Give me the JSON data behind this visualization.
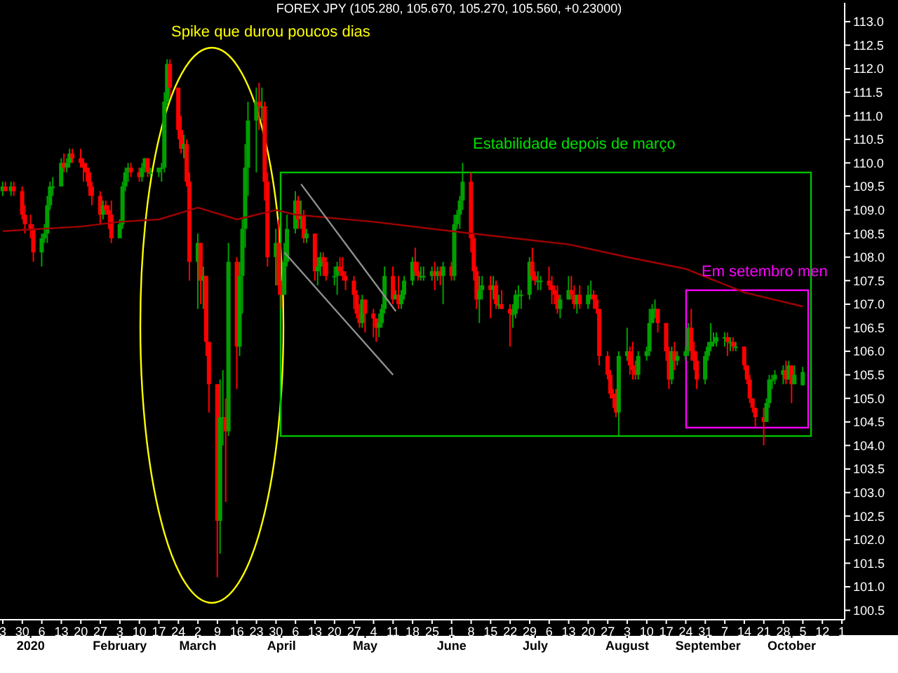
{
  "chart_data": {
    "type": "candlestick",
    "title": "FOREX JPY (105.280, 105.670, 105.270, 105.560, +0.23000)",
    "annotations": [
      "Spike que durou poucos dias",
      "Estabilidade depois de março",
      "Em setembro men"
    ],
    "x": [
      "2019-12-23",
      "2019-12-24",
      "2019-12-26",
      "2019-12-27",
      "2019-12-30",
      "2019-12-31",
      "2020-01-02",
      "2020-01-03",
      "2020-01-06",
      "2020-01-07",
      "2020-01-08",
      "2020-01-09",
      "2020-01-10",
      "2020-01-13",
      "2020-01-14",
      "2020-01-15",
      "2020-01-16",
      "2020-01-17",
      "2020-01-20",
      "2020-01-21",
      "2020-01-22",
      "2020-01-23",
      "2020-01-24",
      "2020-01-27",
      "2020-01-28",
      "2020-01-29",
      "2020-01-30",
      "2020-01-31",
      "2020-02-03",
      "2020-02-04",
      "2020-02-05",
      "2020-02-06",
      "2020-02-07",
      "2020-02-10",
      "2020-02-11",
      "2020-02-12",
      "2020-02-13",
      "2020-02-14",
      "2020-02-17",
      "2020-02-18",
      "2020-02-19",
      "2020-02-20",
      "2020-02-21",
      "2020-02-24",
      "2020-02-25",
      "2020-02-26",
      "2020-02-27",
      "2020-02-28",
      "2020-03-02",
      "2020-03-03",
      "2020-03-04",
      "2020-03-05",
      "2020-03-06",
      "2020-03-09",
      "2020-03-10",
      "2020-03-11",
      "2020-03-12",
      "2020-03-13",
      "2020-03-16",
      "2020-03-17",
      "2020-03-18",
      "2020-03-19",
      "2020-03-20",
      "2020-03-23",
      "2020-03-24",
      "2020-03-25",
      "2020-03-26",
      "2020-03-27",
      "2020-03-30",
      "2020-03-31",
      "2020-04-01",
      "2020-04-02",
      "2020-04-03",
      "2020-04-06",
      "2020-04-07",
      "2020-04-08",
      "2020-04-09",
      "2020-04-10",
      "2020-04-13",
      "2020-04-14",
      "2020-04-15",
      "2020-04-16",
      "2020-04-17",
      "2020-04-20",
      "2020-04-21",
      "2020-04-22",
      "2020-04-23",
      "2020-04-24",
      "2020-04-27",
      "2020-04-28",
      "2020-04-29",
      "2020-04-30",
      "2020-05-01",
      "2020-05-04",
      "2020-05-05",
      "2020-05-06",
      "2020-05-07",
      "2020-05-08",
      "2020-05-11",
      "2020-05-12",
      "2020-05-13",
      "2020-05-14",
      "2020-05-15",
      "2020-05-18",
      "2020-05-19",
      "2020-05-20",
      "2020-05-21",
      "2020-05-22",
      "2020-05-25",
      "2020-05-26",
      "2020-05-27",
      "2020-05-28",
      "2020-05-29",
      "2020-06-01",
      "2020-06-02",
      "2020-06-03",
      "2020-06-04",
      "2020-06-05",
      "2020-06-08",
      "2020-06-09",
      "2020-06-10",
      "2020-06-11",
      "2020-06-12",
      "2020-06-15",
      "2020-06-16",
      "2020-06-17",
      "2020-06-18",
      "2020-06-19",
      "2020-06-22",
      "2020-06-23",
      "2020-06-24",
      "2020-06-25",
      "2020-06-26",
      "2020-06-29",
      "2020-06-30",
      "2020-07-01",
      "2020-07-02",
      "2020-07-03",
      "2020-07-06",
      "2020-07-07",
      "2020-07-08",
      "2020-07-09",
      "2020-07-10",
      "2020-07-13",
      "2020-07-14",
      "2020-07-15",
      "2020-07-16",
      "2020-07-17",
      "2020-07-20",
      "2020-07-21",
      "2020-07-22",
      "2020-07-23",
      "2020-07-24",
      "2020-07-27",
      "2020-07-28",
      "2020-07-29",
      "2020-07-30",
      "2020-07-31",
      "2020-08-03",
      "2020-08-04",
      "2020-08-05",
      "2020-08-06",
      "2020-08-07",
      "2020-08-10",
      "2020-08-11",
      "2020-08-12",
      "2020-08-13",
      "2020-08-14",
      "2020-08-17",
      "2020-08-18",
      "2020-08-19",
      "2020-08-20",
      "2020-08-21",
      "2020-08-24",
      "2020-08-25",
      "2020-08-26",
      "2020-08-27",
      "2020-08-28",
      "2020-08-31",
      "2020-09-01",
      "2020-09-02",
      "2020-09-03",
      "2020-09-04",
      "2020-09-07",
      "2020-09-08",
      "2020-09-09",
      "2020-09-10",
      "2020-09-11",
      "2020-09-14",
      "2020-09-15",
      "2020-09-16",
      "2020-09-17",
      "2020-09-18",
      "2020-09-21",
      "2020-09-22",
      "2020-09-23",
      "2020-09-24",
      "2020-09-25",
      "2020-09-28",
      "2020-09-29",
      "2020-09-30",
      "2020-10-01",
      "2020-10-02",
      "2020-10-05"
    ],
    "ohlc": [
      [
        109.4,
        109.6,
        109.3,
        109.5
      ],
      [
        109.5,
        109.6,
        109.4,
        109.4
      ],
      [
        109.4,
        109.6,
        109.3,
        109.5
      ],
      [
        109.5,
        109.6,
        109.3,
        109.4
      ],
      [
        109.4,
        109.5,
        108.8,
        108.9
      ],
      [
        108.9,
        109.1,
        108.5,
        108.7
      ],
      [
        108.7,
        108.9,
        108.4,
        108.6
      ],
      [
        108.6,
        108.7,
        107.9,
        108.1
      ],
      [
        108.1,
        108.5,
        107.8,
        108.4
      ],
      [
        108.4,
        108.7,
        108.3,
        108.5
      ],
      [
        108.5,
        109.3,
        108.3,
        109.1
      ],
      [
        109.1,
        109.6,
        109.0,
        109.5
      ],
      [
        109.5,
        109.7,
        109.3,
        109.5
      ],
      [
        109.5,
        110.1,
        109.5,
        110.0
      ],
      [
        110.0,
        110.2,
        109.8,
        109.9
      ],
      [
        109.9,
        110.1,
        109.8,
        110.0
      ],
      [
        110.0,
        110.3,
        109.9,
        110.2
      ],
      [
        110.2,
        110.3,
        110.0,
        110.1
      ],
      [
        110.1,
        110.3,
        109.9,
        110.0
      ],
      [
        110.0,
        110.1,
        109.6,
        109.9
      ],
      [
        109.9,
        110.0,
        109.6,
        109.8
      ],
      [
        109.8,
        109.9,
        109.3,
        109.5
      ],
      [
        109.5,
        109.6,
        109.1,
        109.3
      ],
      [
        109.3,
        109.4,
        108.7,
        108.9
      ],
      [
        108.9,
        109.2,
        108.8,
        109.1
      ],
      [
        109.1,
        109.2,
        108.9,
        109.0
      ],
      [
        109.0,
        109.1,
        108.6,
        108.9
      ],
      [
        108.9,
        109.2,
        108.3,
        108.4
      ],
      [
        108.4,
        108.8,
        108.4,
        108.7
      ],
      [
        108.7,
        109.6,
        108.6,
        109.5
      ],
      [
        109.5,
        109.9,
        109.4,
        109.8
      ],
      [
        109.8,
        110.0,
        109.6,
        109.9
      ],
      [
        109.9,
        110.0,
        109.7,
        109.8
      ],
      [
        109.8,
        109.9,
        109.6,
        109.7
      ],
      [
        109.7,
        110.0,
        109.6,
        109.9
      ],
      [
        109.9,
        110.1,
        109.8,
        110.1
      ],
      [
        110.1,
        110.1,
        109.7,
        109.8
      ],
      [
        109.8,
        109.9,
        109.7,
        109.8
      ],
      [
        109.8,
        109.9,
        109.7,
        109.9
      ],
      [
        109.9,
        110.0,
        109.6,
        109.9
      ],
      [
        109.9,
        111.5,
        109.8,
        111.3
      ],
      [
        111.3,
        112.2,
        111.2,
        112.1
      ],
      [
        112.1,
        112.2,
        111.4,
        111.6
      ],
      [
        111.6,
        111.6,
        110.5,
        110.7
      ],
      [
        110.7,
        111.0,
        110.2,
        110.3
      ],
      [
        110.3,
        110.6,
        110.1,
        110.4
      ],
      [
        110.4,
        110.5,
        109.5,
        109.6
      ],
      [
        109.6,
        109.8,
        107.5,
        107.9
      ],
      [
        107.9,
        108.5,
        106.9,
        108.3
      ],
      [
        108.3,
        108.3,
        107.0,
        107.5
      ],
      [
        107.5,
        107.8,
        106.9,
        107.6
      ],
      [
        107.6,
        107.6,
        105.9,
        106.2
      ],
      [
        106.2,
        106.2,
        104.7,
        105.3
      ],
      [
        105.3,
        105.3,
        101.2,
        102.4
      ],
      [
        102.4,
        105.4,
        101.7,
        104.6
      ],
      [
        104.6,
        105.6,
        104.0,
        104.6
      ],
      [
        104.6,
        105.0,
        102.8,
        104.3
      ],
      [
        104.3,
        108.3,
        104.2,
        107.9
      ],
      [
        107.9,
        108.0,
        105.2,
        106.1
      ],
      [
        106.1,
        107.9,
        105.9,
        107.6
      ],
      [
        107.6,
        108.8,
        106.8,
        108.6
      ],
      [
        108.6,
        110.4,
        108.2,
        109.9
      ],
      [
        109.9,
        111.3,
        109.3,
        110.9
      ],
      [
        110.9,
        111.6,
        109.8,
        111.3
      ],
      [
        111.3,
        111.7,
        110.7,
        111.2
      ],
      [
        111.2,
        111.6,
        110.9,
        111.2
      ],
      [
        111.2,
        111.3,
        109.2,
        109.6
      ],
      [
        109.6,
        109.8,
        107.8,
        108.0
      ],
      [
        108.0,
        108.6,
        107.4,
        108.3
      ],
      [
        108.3,
        108.8,
        107.2,
        107.4
      ],
      [
        107.4,
        107.5,
        106.9,
        107.2
      ],
      [
        107.2,
        108.3,
        107.2,
        107.9
      ],
      [
        107.9,
        108.9,
        107.8,
        108.6
      ],
      [
        108.6,
        109.4,
        108.5,
        109.2
      ],
      [
        109.2,
        109.3,
        108.6,
        108.8
      ],
      [
        108.8,
        109.2,
        108.6,
        108.9
      ],
      [
        108.9,
        109.0,
        108.3,
        108.4
      ],
      [
        108.4,
        108.6,
        108.3,
        108.5
      ],
      [
        108.5,
        108.5,
        107.5,
        107.7
      ],
      [
        107.7,
        108.0,
        107.4,
        107.8
      ],
      [
        107.8,
        108.1,
        107.6,
        108.0
      ],
      [
        108.0,
        108.1,
        107.6,
        107.9
      ],
      [
        107.9,
        108.0,
        107.5,
        107.6
      ],
      [
        107.6,
        107.8,
        107.4,
        107.6
      ],
      [
        107.6,
        107.9,
        107.2,
        107.8
      ],
      [
        107.8,
        108.0,
        107.6,
        107.7
      ],
      [
        107.7,
        108.0,
        107.5,
        107.6
      ],
      [
        107.6,
        107.7,
        107.3,
        107.5
      ],
      [
        107.5,
        107.6,
        106.9,
        107.2
      ],
      [
        107.2,
        107.3,
        106.7,
        106.8
      ],
      [
        106.8,
        107.0,
        106.5,
        106.6
      ],
      [
        106.6,
        107.2,
        106.5,
        107.1
      ],
      [
        107.1,
        107.1,
        106.4,
        106.8
      ],
      [
        106.8,
        106.9,
        106.3,
        106.7
      ],
      [
        106.7,
        106.7,
        106.2,
        106.5
      ],
      [
        106.5,
        106.8,
        106.3,
        106.6
      ],
      [
        106.6,
        107.0,
        106.5,
        106.9
      ],
      [
        106.9,
        107.8,
        106.8,
        107.6
      ],
      [
        107.6,
        107.8,
        107.0,
        107.1
      ],
      [
        107.1,
        107.3,
        107.1,
        107.2
      ],
      [
        107.2,
        107.6,
        106.9,
        107.0
      ],
      [
        107.0,
        107.3,
        106.9,
        107.2
      ],
      [
        107.2,
        107.6,
        107.1,
        107.5
      ],
      [
        107.5,
        108.0,
        107.4,
        107.9
      ],
      [
        107.9,
        108.2,
        107.6,
        107.7
      ],
      [
        107.7,
        107.9,
        107.5,
        107.6
      ],
      [
        107.6,
        107.8,
        107.5,
        107.6
      ],
      [
        107.6,
        107.8,
        107.5,
        107.6
      ],
      [
        107.6,
        107.8,
        107.5,
        107.7
      ],
      [
        107.7,
        107.9,
        107.3,
        107.6
      ],
      [
        107.6,
        107.8,
        107.5,
        107.7
      ],
      [
        107.7,
        107.8,
        107.4,
        107.6
      ],
      [
        107.6,
        107.9,
        107.0,
        107.8
      ],
      [
        107.8,
        107.9,
        107.5,
        107.6
      ],
      [
        107.6,
        108.9,
        107.5,
        108.7
      ],
      [
        108.7,
        109.0,
        108.6,
        108.9
      ],
      [
        108.9,
        109.3,
        108.6,
        109.2
      ],
      [
        109.2,
        110.0,
        109.0,
        109.6
      ],
      [
        109.6,
        109.8,
        108.1,
        108.4
      ],
      [
        108.4,
        108.5,
        107.5,
        107.7
      ],
      [
        107.7,
        107.8,
        106.9,
        107.1
      ],
      [
        107.1,
        107.6,
        106.6,
        107.3
      ],
      [
        107.3,
        107.6,
        107.1,
        107.4
      ],
      [
        107.4,
        107.6,
        106.7,
        107.3
      ],
      [
        107.3,
        107.6,
        107.1,
        107.4
      ],
      [
        107.4,
        107.5,
        106.9,
        107.0
      ],
      [
        107.0,
        107.2,
        106.9,
        107.0
      ],
      [
        107.0,
        107.3,
        106.9,
        106.9
      ],
      [
        106.9,
        107.0,
        106.1,
        106.8
      ],
      [
        106.8,
        107.0,
        106.5,
        106.8
      ],
      [
        106.8,
        107.3,
        106.7,
        107.2
      ],
      [
        107.2,
        107.4,
        106.9,
        107.2
      ],
      [
        107.2,
        107.3,
        106.9,
        107.2
      ],
      [
        107.2,
        108.0,
        107.1,
        107.9
      ],
      [
        107.9,
        108.2,
        107.5,
        107.6
      ],
      [
        107.6,
        107.7,
        107.4,
        107.5
      ],
      [
        107.5,
        107.7,
        107.3,
        107.5
      ],
      [
        107.5,
        107.6,
        107.3,
        107.5
      ],
      [
        107.5,
        107.8,
        107.3,
        107.4
      ],
      [
        107.4,
        107.6,
        107.0,
        107.3
      ],
      [
        107.3,
        107.4,
        107.0,
        107.2
      ],
      [
        107.2,
        107.4,
        106.8,
        106.9
      ],
      [
        106.9,
        107.2,
        106.7,
        107.1
      ],
      [
        107.1,
        107.6,
        107.1,
        107.3
      ],
      [
        107.3,
        107.6,
        107.1,
        107.2
      ],
      [
        107.2,
        107.4,
        106.9,
        107.0
      ],
      [
        107.0,
        107.2,
        106.8,
        107.2
      ],
      [
        107.2,
        107.4,
        106.9,
        107.0
      ],
      [
        107.0,
        107.4,
        106.9,
        107.2
      ],
      [
        107.2,
        107.5,
        107.1,
        107.2
      ],
      [
        107.2,
        107.3,
        106.9,
        107.1
      ],
      [
        107.1,
        107.2,
        106.8,
        106.9
      ],
      [
        106.9,
        106.9,
        105.7,
        105.9
      ],
      [
        105.9,
        106.0,
        105.4,
        105.5
      ],
      [
        105.5,
        105.6,
        105.0,
        105.1
      ],
      [
        105.1,
        105.2,
        104.8,
        105.0
      ],
      [
        105.0,
        105.2,
        104.6,
        104.7
      ],
      [
        104.7,
        106.0,
        104.2,
        105.9
      ],
      [
        105.9,
        106.5,
        105.8,
        106.0
      ],
      [
        106.0,
        106.1,
        105.5,
        105.7
      ],
      [
        105.7,
        106.2,
        105.4,
        105.6
      ],
      [
        105.6,
        105.8,
        105.4,
        105.5
      ],
      [
        105.5,
        106.0,
        105.4,
        105.9
      ],
      [
        105.9,
        106.1,
        105.8,
        106.0
      ],
      [
        106.0,
        106.9,
        105.9,
        106.6
      ],
      [
        106.6,
        107.0,
        106.6,
        106.9
      ],
      [
        106.9,
        107.1,
        106.7,
        106.9
      ],
      [
        106.9,
        106.9,
        106.4,
        106.6
      ],
      [
        106.6,
        106.6,
        105.8,
        106.0
      ],
      [
        106.0,
        106.1,
        105.2,
        105.4
      ],
      [
        105.4,
        106.1,
        105.3,
        106.0
      ],
      [
        106.0,
        106.2,
        105.6,
        105.8
      ],
      [
        105.8,
        106.0,
        105.7,
        105.9
      ],
      [
        105.9,
        106.1,
        105.8,
        106.0
      ],
      [
        106.0,
        106.6,
        105.9,
        106.5
      ],
      [
        106.5,
        106.9,
        105.8,
        106.0
      ],
      [
        106.0,
        106.2,
        105.6,
        105.8
      ],
      [
        105.8,
        106.0,
        105.2,
        105.4
      ],
      [
        105.4,
        106.0,
        105.3,
        105.9
      ],
      [
        105.9,
        106.2,
        105.8,
        106.1
      ],
      [
        106.1,
        106.6,
        106.0,
        106.2
      ],
      [
        106.2,
        106.4,
        106.1,
        106.2
      ],
      [
        106.2,
        106.4,
        106.1,
        106.3
      ],
      [
        106.3,
        106.4,
        106.1,
        106.3
      ],
      [
        106.3,
        106.4,
        105.9,
        106.2
      ],
      [
        106.2,
        106.3,
        106.0,
        106.2
      ],
      [
        106.2,
        106.3,
        106.0,
        106.1
      ],
      [
        106.1,
        106.2,
        106.0,
        106.1
      ],
      [
        106.1,
        106.1,
        105.6,
        105.7
      ],
      [
        105.7,
        105.7,
        105.3,
        105.4
      ],
      [
        105.4,
        105.5,
        104.9,
        105.0
      ],
      [
        105.0,
        105.0,
        104.7,
        104.8
      ],
      [
        104.8,
        104.8,
        104.4,
        104.6
      ],
      [
        104.6,
        104.8,
        104.0,
        104.5
      ],
      [
        104.5,
        105.0,
        104.5,
        104.9
      ],
      [
        104.9,
        105.5,
        104.8,
        105.4
      ],
      [
        105.4,
        105.5,
        105.2,
        105.4
      ],
      [
        105.4,
        105.6,
        105.3,
        105.5
      ],
      [
        105.5,
        105.7,
        105.3,
        105.6
      ],
      [
        105.6,
        105.8,
        105.3,
        105.4
      ],
      [
        105.4,
        105.8,
        105.4,
        105.7
      ],
      [
        105.7,
        105.7,
        104.9,
        105.3
      ],
      [
        105.3,
        105.7,
        105.3,
        105.5
      ],
      [
        105.28,
        105.67,
        105.27,
        105.56
      ]
    ],
    "colors": [
      "#00a000",
      "#ff0000",
      "#00a000",
      "#ff0000",
      "#ff0000",
      "#ff0000",
      "#ff0000",
      "#ff0000",
      "#00a000",
      "#00a000",
      "#00a000",
      "#00a000",
      "#00a000",
      "#00a000",
      "#ff0000",
      "#00a000",
      "#00a000",
      "#ff0000",
      "#ff0000",
      "#ff0000",
      "#ff0000",
      "#ff0000",
      "#ff0000",
      "#ff0000",
      "#00a000",
      "#ff0000",
      "#ff0000",
      "#ff0000",
      "#00a000",
      "#00a000",
      "#00a000",
      "#00a000",
      "#ff0000",
      "#ff0000",
      "#00a000",
      "#00a000",
      "#ff0000",
      "#00a000",
      "#00a000",
      "#00a000",
      "#00a000",
      "#00a000",
      "#ff0000",
      "#ff0000",
      "#ff0000",
      "#00a000",
      "#ff0000",
      "#ff0000",
      "#00a000",
      "#ff0000",
      "#00a000",
      "#ff0000",
      "#ff0000",
      "#ff0000",
      "#00a000",
      "#00a000",
      "#ff0000",
      "#00a000",
      "#ff0000",
      "#00a000",
      "#00a000",
      "#00a000",
      "#00a000",
      "#00a000",
      "#ff0000",
      "#00a000",
      "#ff0000",
      "#ff0000",
      "#00a000",
      "#ff0000",
      "#ff0000",
      "#00a000",
      "#00a000",
      "#00a000",
      "#ff0000",
      "#00a000",
      "#ff0000",
      "#00a000",
      "#ff0000",
      "#00a000",
      "#00a000",
      "#ff0000",
      "#ff0000",
      "#00a000",
      "#00a000",
      "#ff0000",
      "#ff0000",
      "#ff0000",
      "#ff0000",
      "#ff0000",
      "#ff0000",
      "#00a000",
      "#ff0000",
      "#ff0000",
      "#ff0000",
      "#00a000",
      "#00a000",
      "#00a000",
      "#ff0000",
      "#00a000",
      "#ff0000",
      "#00a000",
      "#00a000",
      "#00a000",
      "#ff0000",
      "#ff0000",
      "#00a000",
      "#00a000",
      "#00a000",
      "#ff0000",
      "#00a000",
      "#ff0000",
      "#00a000",
      "#ff0000",
      "#00a000",
      "#00a000",
      "#00a000",
      "#00a000",
      "#ff0000",
      "#ff0000",
      "#ff0000",
      "#00a000",
      "#00a000",
      "#ff0000",
      "#00a000",
      "#ff0000",
      "#00a000",
      "#ff0000",
      "#ff0000",
      "#00a000",
      "#00a000",
      "#00a000",
      "#00a000",
      "#00a000",
      "#ff0000",
      "#ff0000",
      "#00a000",
      "#00a000",
      "#ff0000",
      "#ff0000",
      "#ff0000",
      "#ff0000",
      "#00a000",
      "#00a000",
      "#ff0000",
      "#ff0000",
      "#00a000",
      "#ff0000",
      "#00a000",
      "#00a000",
      "#ff0000",
      "#ff0000",
      "#ff0000",
      "#ff0000",
      "#ff0000",
      "#ff0000",
      "#ff0000",
      "#00a000",
      "#00a000",
      "#ff0000",
      "#ff0000",
      "#ff0000",
      "#00a000",
      "#00a000",
      "#00a000",
      "#00a000",
      "#00a000",
      "#ff0000",
      "#ff0000",
      "#ff0000",
      "#00a000",
      "#ff0000",
      "#00a000",
      "#00a000",
      "#00a000",
      "#ff0000",
      "#ff0000",
      "#ff0000",
      "#00a000",
      "#00a000",
      "#00a000",
      "#00a000",
      "#00a000",
      "#00a000",
      "#ff0000",
      "#00a000",
      "#ff0000",
      "#00a000",
      "#ff0000",
      "#ff0000",
      "#ff0000",
      "#ff0000",
      "#ff0000",
      "#ff0000",
      "#00a000",
      "#00a000",
      "#00a000",
      "#00a000",
      "#00a000",
      "#ff0000",
      "#00a000",
      "#ff0000",
      "#00a000",
      "#00a000"
    ],
    "series": [
      {
        "type": "line",
        "color": "#a00000",
        "x": [
          "2019-12-23",
          "2020-01-20",
          "2020-02-03",
          "2020-02-17",
          "2020-03-02",
          "2020-03-16",
          "2020-03-30",
          "2020-04-06",
          "2020-05-04",
          "2020-06-01",
          "2020-07-01",
          "2020-07-13",
          "2020-08-03",
          "2020-08-24",
          "2020-09-14",
          "2020-10-05"
        ],
        "values": [
          108.55,
          108.65,
          108.75,
          108.8,
          109.05,
          108.8,
          109.0,
          108.9,
          108.75,
          108.55,
          108.35,
          108.27,
          108.0,
          107.75,
          107.25,
          106.95
        ]
      },
      {
        "type": "line",
        "color": "#909090",
        "x": [
          "2020-04-08",
          "2020-05-12"
        ],
        "values": [
          109.55,
          106.85
        ]
      },
      {
        "type": "line",
        "color": "#909090",
        "x": [
          "2020-04-02",
          "2020-05-11"
        ],
        "values": [
          108.1,
          105.5
        ]
      }
    ],
    "xlim": [
      "2019-12-22",
      "2020-10-20"
    ],
    "xticks": [
      {
        "value": "2019-12-23",
        "label": "3"
      },
      {
        "value": "2019-12-30",
        "label": "30"
      },
      {
        "value": "2020-01-06",
        "label": "6"
      },
      {
        "value": "2020-01-13",
        "label": "13"
      },
      {
        "value": "2020-01-20",
        "label": "20"
      },
      {
        "value": "2020-01-27",
        "label": "27"
      },
      {
        "value": "2020-02-03",
        "label": "3"
      },
      {
        "value": "2020-02-10",
        "label": "10"
      },
      {
        "value": "2020-02-17",
        "label": "17"
      },
      {
        "value": "2020-02-24",
        "label": "24"
      },
      {
        "value": "2020-03-02",
        "label": "2"
      },
      {
        "value": "2020-03-09",
        "label": "9"
      },
      {
        "value": "2020-03-16",
        "label": "16"
      },
      {
        "value": "2020-03-23",
        "label": "23"
      },
      {
        "value": "2020-03-30",
        "label": "30"
      },
      {
        "value": "2020-04-06",
        "label": "6"
      },
      {
        "value": "2020-04-13",
        "label": "13"
      },
      {
        "value": "2020-04-20",
        "label": "20"
      },
      {
        "value": "2020-04-27",
        "label": "27"
      },
      {
        "value": "2020-05-04",
        "label": "4"
      },
      {
        "value": "2020-05-11",
        "label": "11"
      },
      {
        "value": "2020-05-18",
        "label": "18"
      },
      {
        "value": "2020-05-25",
        "label": "25"
      },
      {
        "value": "2020-06-01",
        "label": "1"
      },
      {
        "value": "2020-06-08",
        "label": "8"
      },
      {
        "value": "2020-06-15",
        "label": "15"
      },
      {
        "value": "2020-06-22",
        "label": "22"
      },
      {
        "value": "2020-06-29",
        "label": "29"
      },
      {
        "value": "2020-07-06",
        "label": "6"
      },
      {
        "value": "2020-07-13",
        "label": "13"
      },
      {
        "value": "2020-07-20",
        "label": "20"
      },
      {
        "value": "2020-07-27",
        "label": "27"
      },
      {
        "value": "2020-08-03",
        "label": "3"
      },
      {
        "value": "2020-08-10",
        "label": "10"
      },
      {
        "value": "2020-08-17",
        "label": "17"
      },
      {
        "value": "2020-08-24",
        "label": "24"
      },
      {
        "value": "2020-08-31",
        "label": "31"
      },
      {
        "value": "2020-09-07",
        "label": "7"
      },
      {
        "value": "2020-09-14",
        "label": "14"
      },
      {
        "value": "2020-09-21",
        "label": "21"
      },
      {
        "value": "2020-09-28",
        "label": "28"
      },
      {
        "value": "2020-10-05",
        "label": "5"
      },
      {
        "value": "2020-10-12",
        "label": "12"
      },
      {
        "value": "2020-10-19",
        "label": "1"
      }
    ],
    "x2lim": [
      "2019-12-22",
      "2020-10-20"
    ],
    "x2ticks": [
      {
        "value": "2020-01-02",
        "label": "2020"
      },
      {
        "value": "2020-02-03",
        "label": "February"
      },
      {
        "value": "2020-03-02",
        "label": "March"
      },
      {
        "value": "2020-04-01",
        "label": "April"
      },
      {
        "value": "2020-05-01",
        "label": "May"
      },
      {
        "value": "2020-06-01",
        "label": "June"
      },
      {
        "value": "2020-07-01",
        "label": "July"
      },
      {
        "value": "2020-08-03",
        "label": "August"
      },
      {
        "value": "2020-09-01",
        "label": "September"
      },
      {
        "value": "2020-10-01",
        "label": "October"
      }
    ],
    "ylim": [
      100.3,
      113.4
    ],
    "yticks": [
      {
        "value": 100.5,
        "label": "100.5"
      },
      {
        "value": 101,
        "label": "101.0"
      },
      {
        "value": 101.5,
        "label": "101.5"
      },
      {
        "value": 102,
        "label": "102.0"
      },
      {
        "value": 102.5,
        "label": "102.5"
      },
      {
        "value": 103,
        "label": "103.0"
      },
      {
        "value": 103.5,
        "label": "103.5"
      },
      {
        "value": 104,
        "label": "104.0"
      },
      {
        "value": 104.5,
        "label": "104.5"
      },
      {
        "value": 105,
        "label": "105.0"
      },
      {
        "value": 105.5,
        "label": "105.5"
      },
      {
        "value": 106,
        "label": "106.0"
      },
      {
        "value": 106.5,
        "label": "106.5"
      },
      {
        "value": 107,
        "label": "107.0"
      },
      {
        "value": 107.5,
        "label": "107.5"
      },
      {
        "value": 108,
        "label": "108.0"
      },
      {
        "value": 108.5,
        "label": "108.5"
      },
      {
        "value": 109,
        "label": "109.0"
      },
      {
        "value": 109.5,
        "label": "109.5"
      },
      {
        "value": 110,
        "label": "110.0"
      },
      {
        "value": 110.5,
        "label": "110.5"
      },
      {
        "value": 111,
        "label": "111.0"
      },
      {
        "value": 111.5,
        "label": "111.5"
      },
      {
        "value": 112,
        "label": "112.0"
      },
      {
        "value": 112.5,
        "label": "112.5"
      },
      {
        "value": 113,
        "label": "113.0"
      }
    ]
  }
}
